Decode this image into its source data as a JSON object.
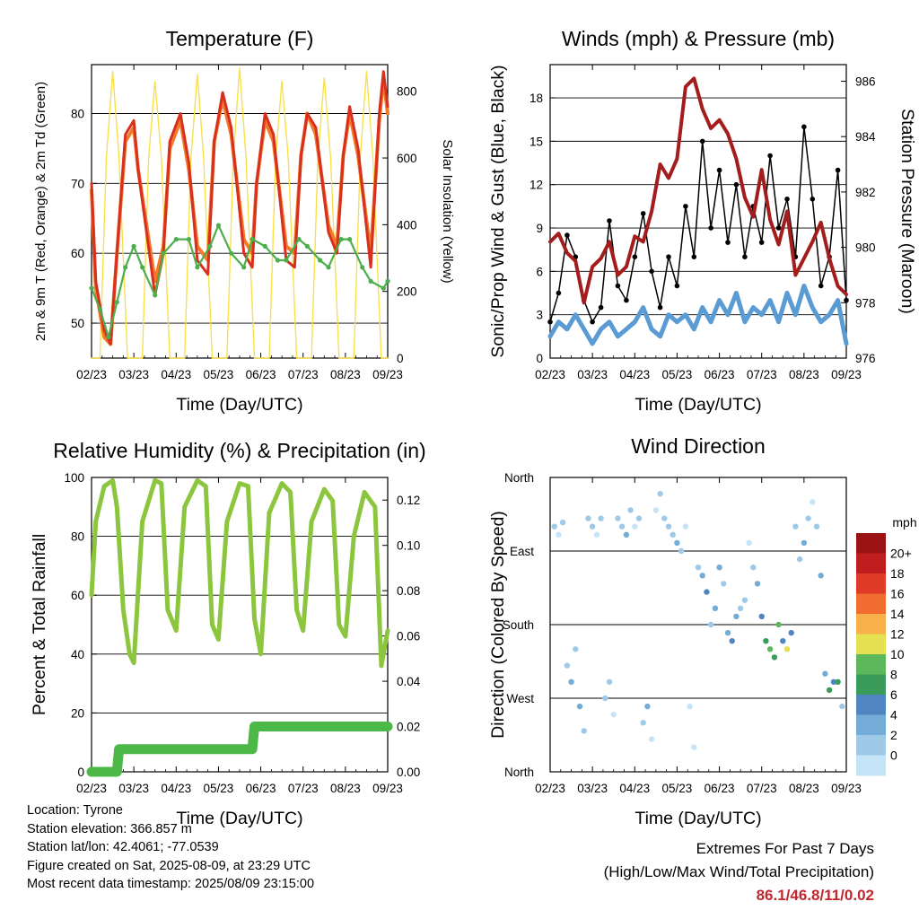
{
  "charts": {
    "temperature": {
      "title": "Temperature (F)",
      "ylabel_left": "2m & 9m T (Red, Orange) & 2m Td (Green)",
      "ylabel_right": "Solar Insolation (Yellow)",
      "xlabel": "Time (Day/UTC)"
    },
    "winds": {
      "title": "Winds (mph) & Pressure (mb)",
      "ylabel_left": "Sonic/Prop Wind & Gust (Blue, Black)",
      "ylabel_right": "Station Pressure (Maroon)",
      "xlabel": "Time (Day/UTC)"
    },
    "humidity": {
      "title": "Relative Humidity (%) & Precipitation (in)",
      "ylabel_left": "Percent & Total Rainfall",
      "xlabel": "Time (Day/UTC)"
    },
    "direction": {
      "title": "Wind Direction",
      "ylabel_left": "Direction (Colored By Speed)",
      "xlabel": "Time (Day/UTC)",
      "colorbar_title": "mph"
    }
  },
  "colors": {
    "temp_2m": "#d7301f",
    "temp_9m": "#f47a29",
    "dewpoint": "#4cae4c",
    "solar": "#f9e04b",
    "wind": "#5a9bd4",
    "gust": "#000000",
    "pressure": "#a31d1d",
    "rh": "#8cc63f",
    "precip": "#4cb848"
  },
  "chart_data": [
    {
      "type": "line",
      "name": "temperature",
      "x_ticks": [
        "02/23",
        "03/23",
        "04/23",
        "05/23",
        "06/23",
        "07/23",
        "08/23",
        "09/23"
      ],
      "xlim": [
        0,
        7
      ],
      "ylim": [
        45,
        87
      ],
      "y_ticks": [
        50,
        60,
        70,
        80
      ],
      "y2lim": [
        0,
        880
      ],
      "y2_ticks": [
        0,
        200,
        400,
        600,
        800
      ],
      "grid": true,
      "series": [
        {
          "name": "2m T (Red)",
          "color_key": "temp_2m",
          "x": [
            0,
            0.1,
            0.3,
            0.45,
            0.6,
            0.8,
            1.0,
            1.1,
            1.5,
            1.7,
            1.85,
            2.1,
            2.3,
            2.5,
            2.75,
            2.9,
            3.1,
            3.3,
            3.6,
            3.8,
            3.9,
            4.1,
            4.3,
            4.6,
            4.8,
            4.95,
            5.1,
            5.3,
            5.6,
            5.8,
            5.95,
            6.1,
            6.3,
            6.6,
            6.8,
            6.9,
            7.0
          ],
          "y": [
            70,
            56,
            49,
            47,
            60,
            77,
            79,
            72,
            54,
            60,
            76,
            80,
            73,
            59,
            57,
            76,
            83,
            78,
            60,
            58,
            70,
            80,
            77,
            59,
            58,
            74,
            80,
            78,
            63,
            60,
            74,
            81,
            75,
            58,
            80,
            86,
            81
          ]
        },
        {
          "name": "9m T (Orange)",
          "color_key": "temp_9m",
          "x": [
            0,
            0.1,
            0.3,
            0.45,
            0.6,
            0.8,
            1.0,
            1.1,
            1.5,
            1.7,
            1.85,
            2.1,
            2.3,
            2.5,
            2.75,
            2.9,
            3.1,
            3.3,
            3.6,
            3.8,
            3.9,
            4.1,
            4.3,
            4.6,
            4.8,
            4.95,
            5.1,
            5.3,
            5.6,
            5.8,
            5.95,
            6.1,
            6.3,
            6.6,
            6.8,
            6.9,
            7.0
          ],
          "y": [
            69,
            55,
            48,
            47,
            60,
            76,
            78,
            72,
            56,
            61,
            75,
            79,
            72,
            61,
            59,
            76,
            82,
            77,
            62,
            60,
            70,
            79,
            76,
            61,
            60,
            74,
            80,
            77,
            64,
            61,
            74,
            80,
            74,
            60,
            79,
            85,
            80
          ]
        },
        {
          "name": "2m Td (Green)",
          "color_key": "dewpoint",
          "x": [
            0,
            0.2,
            0.4,
            0.6,
            0.8,
            1.0,
            1.2,
            1.5,
            1.7,
            2.0,
            2.3,
            2.5,
            2.8,
            3.0,
            3.3,
            3.6,
            3.8,
            4.1,
            4.4,
            4.6,
            4.9,
            5.1,
            5.4,
            5.6,
            5.9,
            6.1,
            6.4,
            6.6,
            6.9,
            7.0
          ],
          "y": [
            55,
            52,
            48,
            53,
            58,
            61,
            58,
            54,
            60,
            62,
            62,
            58,
            61,
            64,
            60,
            58,
            62,
            61,
            59,
            59,
            62,
            61,
            59,
            58,
            62,
            62,
            58,
            56,
            55,
            56
          ]
        },
        {
          "name": "Solar Insolation (Yellow)",
          "color_key": "solar",
          "axis": "right",
          "x": [
            0,
            0.2,
            0.35,
            0.5,
            0.65,
            0.85,
            1.2,
            1.35,
            1.5,
            1.65,
            1.85,
            2.2,
            2.35,
            2.5,
            2.65,
            2.85,
            3.2,
            3.35,
            3.5,
            3.65,
            3.85,
            4.2,
            4.35,
            4.5,
            4.65,
            4.85,
            5.2,
            5.35,
            5.5,
            5.65,
            5.85,
            6.2,
            6.35,
            6.5,
            6.65,
            6.85,
            7.0
          ],
          "y": [
            0,
            0,
            600,
            860,
            600,
            0,
            0,
            600,
            830,
            600,
            0,
            0,
            600,
            850,
            600,
            0,
            0,
            600,
            870,
            600,
            0,
            0,
            600,
            830,
            600,
            0,
            0,
            600,
            840,
            600,
            0,
            0,
            600,
            860,
            600,
            0,
            0
          ]
        }
      ]
    },
    {
      "type": "line",
      "name": "winds",
      "x_ticks": [
        "02/23",
        "03/23",
        "04/23",
        "05/23",
        "06/23",
        "07/23",
        "08/23",
        "09/23"
      ],
      "xlim": [
        0,
        7
      ],
      "ylim": [
        0,
        20.3
      ],
      "y_ticks": [
        0,
        3,
        6,
        9,
        12,
        15,
        18
      ],
      "y2lim": [
        976,
        986.6
      ],
      "y2_ticks": [
        976,
        978,
        980,
        982,
        984,
        986
      ],
      "grid": true,
      "series": [
        {
          "name": "Sonic/Prop Wind (Blue)",
          "color_key": "wind",
          "x": [
            0,
            0.2,
            0.4,
            0.6,
            0.8,
            1.0,
            1.2,
            1.4,
            1.6,
            1.8,
            2.0,
            2.2,
            2.4,
            2.6,
            2.8,
            3.0,
            3.2,
            3.4,
            3.6,
            3.8,
            4.0,
            4.2,
            4.4,
            4.6,
            4.8,
            5.0,
            5.2,
            5.4,
            5.6,
            5.8,
            6.0,
            6.2,
            6.4,
            6.6,
            6.8,
            7.0
          ],
          "y": [
            1.5,
            2.5,
            2,
            3,
            2,
            1,
            2,
            2.5,
            1.5,
            2,
            2.5,
            3.5,
            2,
            1.5,
            3,
            2.5,
            3,
            2,
            3.5,
            2.5,
            4,
            3,
            4.5,
            2.5,
            3.5,
            3,
            4,
            2.5,
            4.5,
            3,
            5,
            3.5,
            2.5,
            3,
            4,
            1
          ]
        },
        {
          "name": "Gust (Black)",
          "color_key": "gust",
          "x": [
            0,
            0.2,
            0.4,
            0.6,
            0.8,
            1.0,
            1.2,
            1.4,
            1.6,
            1.8,
            2.0,
            2.2,
            2.4,
            2.6,
            2.8,
            3.0,
            3.2,
            3.4,
            3.6,
            3.8,
            4.0,
            4.2,
            4.4,
            4.6,
            4.8,
            5.0,
            5.2,
            5.4,
            5.6,
            5.8,
            6.0,
            6.2,
            6.4,
            6.6,
            6.8,
            7.0
          ],
          "y": [
            2.5,
            4.5,
            8.5,
            7,
            4,
            2.5,
            3.5,
            9.5,
            5,
            4,
            7,
            10,
            6,
            3.5,
            7,
            5,
            10.5,
            7,
            15,
            9,
            13,
            8,
            12,
            7,
            10.5,
            8,
            14,
            9,
            11,
            7,
            16,
            11,
            5,
            7,
            13,
            4
          ]
        },
        {
          "name": "Station Pressure (Maroon)",
          "color_key": "pressure",
          "axis": "right",
          "x": [
            0,
            0.2,
            0.4,
            0.6,
            0.8,
            1.0,
            1.2,
            1.4,
            1.6,
            1.8,
            2.0,
            2.2,
            2.4,
            2.6,
            2.8,
            3.0,
            3.2,
            3.4,
            3.6,
            3.8,
            4.0,
            4.2,
            4.4,
            4.6,
            4.8,
            5.0,
            5.2,
            5.4,
            5.6,
            5.8,
            6.0,
            6.2,
            6.4,
            6.6,
            6.8,
            7.0
          ],
          "y": [
            980.2,
            980.5,
            979.8,
            979.5,
            978,
            979.3,
            979.6,
            980.2,
            979.0,
            979.3,
            980.4,
            980.2,
            981.3,
            983.0,
            982.5,
            983.2,
            985.8,
            986.1,
            985.0,
            984.3,
            984.6,
            984.1,
            983.2,
            981.8,
            981.1,
            982.8,
            981.0,
            980.1,
            981.3,
            979.0,
            979.6,
            980.2,
            980.9,
            979.6,
            978.6,
            978.3
          ]
        }
      ]
    },
    {
      "type": "line",
      "name": "humidity",
      "x_ticks": [
        "02/23",
        "03/23",
        "04/23",
        "05/23",
        "06/23",
        "07/23",
        "08/23",
        "09/23"
      ],
      "xlim": [
        0,
        7
      ],
      "ylim": [
        0,
        100
      ],
      "y_ticks": [
        0,
        20,
        40,
        60,
        80,
        100
      ],
      "y2lim": [
        0,
        0.13
      ],
      "y2_ticks": [
        "0.00",
        "0.02",
        "0.04",
        "0.06",
        "0.08",
        "0.10",
        "0.12"
      ],
      "grid": true,
      "series": [
        {
          "name": "Relative Humidity",
          "color_key": "rh",
          "x": [
            0,
            0.1,
            0.3,
            0.5,
            0.6,
            0.75,
            0.9,
            1.0,
            1.2,
            1.5,
            1.65,
            1.8,
            2.0,
            2.2,
            2.5,
            2.7,
            2.85,
            3.0,
            3.2,
            3.5,
            3.7,
            3.85,
            4.0,
            4.2,
            4.5,
            4.7,
            4.85,
            5.0,
            5.2,
            5.5,
            5.7,
            5.85,
            6.0,
            6.2,
            6.45,
            6.7,
            6.85,
            7.0
          ],
          "y": [
            60,
            85,
            97,
            99,
            90,
            55,
            40,
            37,
            85,
            99,
            98,
            55,
            48,
            90,
            99,
            97,
            50,
            45,
            85,
            98,
            97,
            52,
            40,
            88,
            98,
            95,
            55,
            48,
            85,
            96,
            92,
            50,
            46,
            80,
            95,
            90,
            36,
            48
          ]
        },
        {
          "name": "Total Rainfall",
          "color_key": "precip",
          "axis": "right",
          "x": [
            0,
            0.6,
            0.65,
            3.8,
            3.85,
            7.0
          ],
          "y": [
            0.0,
            0.0,
            0.01,
            0.01,
            0.02,
            0.02
          ]
        }
      ]
    },
    {
      "type": "scatter",
      "name": "direction",
      "x_ticks": [
        "02/23",
        "03/23",
        "04/23",
        "05/23",
        "06/23",
        "07/23",
        "08/23",
        "09/23"
      ],
      "xlim": [
        0,
        7
      ],
      "ylim": [
        0,
        360
      ],
      "y_ticks": [
        "North",
        "East",
        "South",
        "West",
        "North"
      ],
      "grid": true,
      "colorbar": {
        "labels": [
          "0",
          "2",
          "4",
          "6",
          "8",
          "10",
          "12",
          "14",
          "16",
          "18",
          "20+"
        ],
        "colors": [
          "#c6e4f7",
          "#9ecae8",
          "#74acd8",
          "#4f86c2",
          "#3a9b5a",
          "#5db85b",
          "#e5e153",
          "#f8b04a",
          "#f06c2f",
          "#df3b26",
          "#c01d1e",
          "#9a1214"
        ]
      },
      "series": [
        {
          "name": "Direction",
          "x": [
            0.1,
            0.2,
            0.3,
            0.4,
            0.5,
            0.6,
            0.7,
            0.8,
            0.9,
            1.0,
            1.1,
            1.2,
            1.3,
            1.4,
            1.5,
            1.6,
            1.7,
            1.8,
            1.9,
            2.0,
            2.1,
            2.2,
            2.3,
            2.4,
            2.5,
            2.6,
            2.7,
            2.8,
            2.9,
            3.0,
            3.1,
            3.2,
            3.3,
            3.4,
            3.5,
            3.6,
            3.7,
            3.8,
            3.9,
            4.0,
            4.1,
            4.2,
            4.3,
            4.4,
            4.5,
            4.6,
            4.7,
            4.8,
            4.9,
            5.0,
            5.1,
            5.2,
            5.3,
            5.4,
            5.5,
            5.6,
            5.7,
            5.8,
            5.9,
            6.0,
            6.1,
            6.2,
            6.3,
            6.4,
            6.5,
            6.6,
            6.7,
            6.8,
            6.9
          ],
          "y": [
            60,
            70,
            55,
            230,
            250,
            210,
            280,
            310,
            50,
            60,
            70,
            50,
            270,
            250,
            290,
            50,
            60,
            70,
            40,
            60,
            50,
            300,
            280,
            320,
            40,
            20,
            50,
            60,
            70,
            80,
            90,
            60,
            280,
            330,
            110,
            120,
            140,
            180,
            160,
            110,
            130,
            190,
            200,
            170,
            160,
            150,
            80,
            110,
            130,
            170,
            200,
            210,
            220,
            180,
            200,
            210,
            190,
            60,
            100,
            80,
            50,
            30,
            60,
            120,
            240,
            260,
            250,
            250,
            280
          ],
          "speed": [
            2,
            1,
            2,
            3,
            4,
            3,
            4,
            2,
            3,
            2,
            1,
            2,
            3,
            2,
            1,
            2,
            3,
            4,
            2,
            1,
            2,
            3,
            4,
            1,
            1,
            2,
            2,
            3,
            3,
            4,
            2,
            1,
            1,
            1,
            3,
            4,
            6,
            3,
            5,
            4,
            3,
            5,
            7,
            4,
            3,
            2,
            1,
            2,
            4,
            6,
            8,
            11,
            9,
            10,
            7,
            12,
            6,
            3,
            2,
            4,
            2,
            1,
            2,
            5,
            5,
            9,
            6,
            8,
            3
          ]
        }
      ]
    }
  ],
  "info": {
    "location": "Location: Tyrone",
    "elevation": "Station elevation: 366.857 m",
    "latlon": "Station lat/lon: 42.4061; -77.0539",
    "created": "Figure created on Sat, 2025-08-09, at 23:29 UTC",
    "recent": "Most recent data timestamp: 2025/08/09 23:15:00"
  },
  "extremes": {
    "line1": "Extremes For Past 7 Days",
    "line2": "(High/Low/Max Wind/Total Precipitation)",
    "values": "86.1/46.8/11/0.02"
  }
}
